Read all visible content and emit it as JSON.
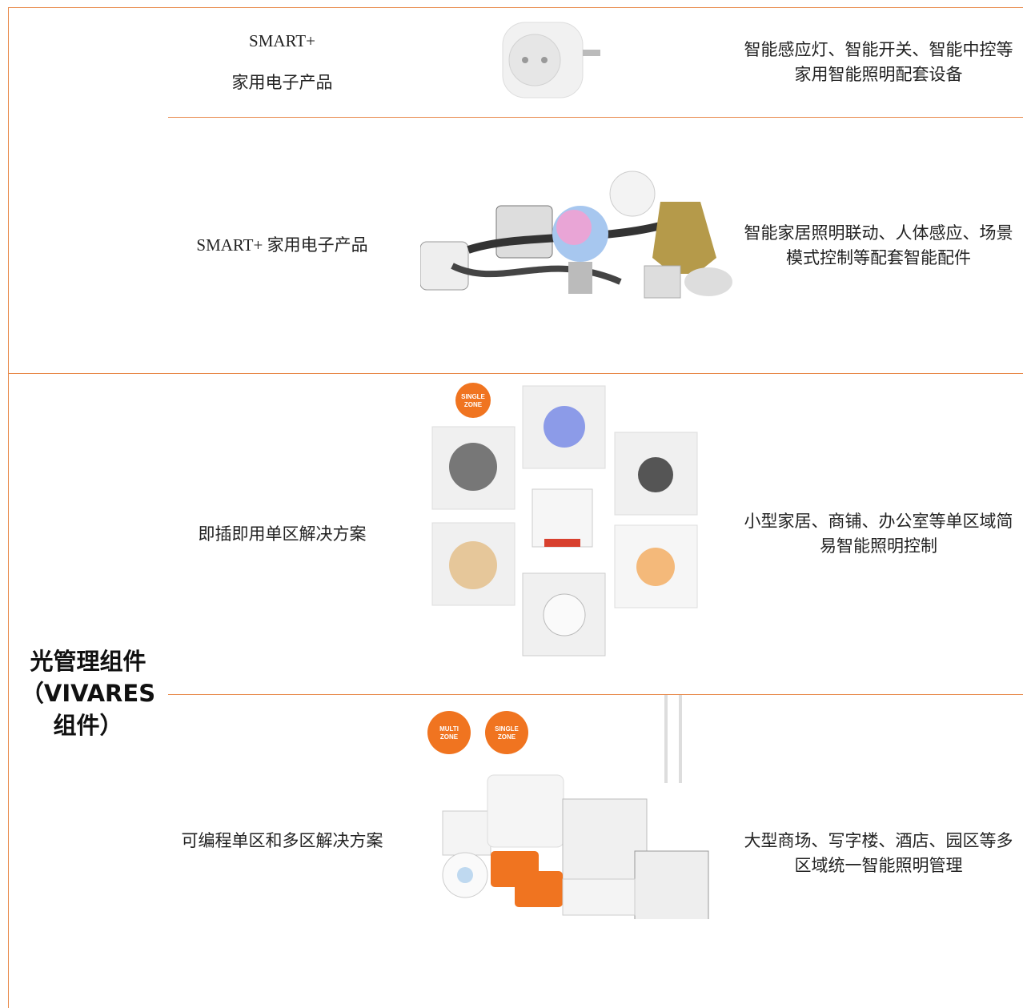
{
  "group": {
    "label": "光管理组件（VIVARES组件）"
  },
  "rows": [
    {
      "product": [
        "SMART+",
        "家用电子产品"
      ],
      "description": "智能感应灯、智能开关、智能中控等家用智能照明配套设备"
    },
    {
      "product": [
        "SMART+ 家用电子产品"
      ],
      "description": "智能家居照明联动、人体感应、场景模式控制等配套智能配件"
    },
    {
      "product": [
        "即插即用单区解决方案"
      ],
      "description": "小型家居、商铺、办公室等单区域简易智能照明控制",
      "badges": [
        [
          "SINGLE",
          "ZONE"
        ]
      ]
    },
    {
      "product": [
        "可编程单区和多区解决方案"
      ],
      "description": "大型商场、写字楼、酒店、园区等多区域统一智能照明管理",
      "badges": [
        [
          "MULTI",
          "ZONE"
        ],
        [
          "SINGLE",
          "ZONE"
        ]
      ]
    }
  ]
}
